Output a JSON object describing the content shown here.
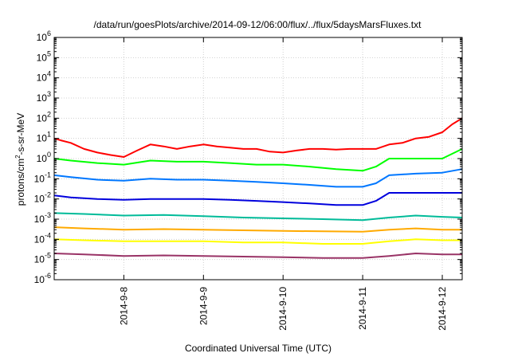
{
  "chart_data": {
    "type": "line",
    "title": "/data/run/goesPlots/archive/2014-09-12/06:00/flux/../flux/5daysMarsFluxes.txt",
    "xlabel": "Coordinated Universal Time (UTC)",
    "ylabel": "protons/cm²-s-sr-MeV",
    "ylabel_parts": {
      "before": "protons/cm",
      "sup": "2",
      "after": "-s-sr-MeV"
    },
    "y_scale": "log",
    "ylim": [
      1e-06,
      1000000.0
    ],
    "y_ticks": [
      {
        "value": 1e-06,
        "base": "10",
        "exp": "-6"
      },
      {
        "value": 1e-05,
        "base": "10",
        "exp": "-5"
      },
      {
        "value": 0.0001,
        "base": "10",
        "exp": "-4"
      },
      {
        "value": 0.001,
        "base": "10",
        "exp": "-3"
      },
      {
        "value": 0.01,
        "base": "10",
        "exp": "-2"
      },
      {
        "value": 0.1,
        "base": "10",
        "exp": "-1"
      },
      {
        "value": 1,
        "base": "10",
        "exp": "0"
      },
      {
        "value": 10,
        "base": "10",
        "exp": "1"
      },
      {
        "value": 100,
        "base": "10",
        "exp": "2"
      },
      {
        "value": 1000,
        "base": "10",
        "exp": "3"
      },
      {
        "value": 10000,
        "base": "10",
        "exp": "4"
      },
      {
        "value": 100000,
        "base": "10",
        "exp": "5"
      },
      {
        "value": 1000000,
        "base": "10",
        "exp": "6"
      }
    ],
    "xlim": [
      "2014-09-07 03:00",
      "2014-09-12 06:00"
    ],
    "x_ticks": [
      {
        "value": "2014-09-08 00:00",
        "label": "2014-9-8"
      },
      {
        "value": "2014-09-09 00:00",
        "label": "2014-9-9"
      },
      {
        "value": "2014-09-10 00:00",
        "label": "2014-9-10"
      },
      {
        "value": "2014-09-11 00:00",
        "label": "2014-9-11"
      },
      {
        "value": "2014-09-12 00:00",
        "label": "2014-9-12"
      }
    ],
    "grid": true,
    "legend": "none",
    "series": [
      {
        "color": "#ff0000",
        "x": [
          "2014-09-07 03:00",
          "2014-09-07 05:00",
          "2014-09-07 08:00",
          "2014-09-07 12:00",
          "2014-09-07 16:00",
          "2014-09-07 20:00",
          "2014-09-08 00:00",
          "2014-09-08 04:00",
          "2014-09-08 08:00",
          "2014-09-08 12:00",
          "2014-09-08 16:00",
          "2014-09-08 20:00",
          "2014-09-09 00:00",
          "2014-09-09 04:00",
          "2014-09-09 08:00",
          "2014-09-09 12:00",
          "2014-09-09 16:00",
          "2014-09-09 20:00",
          "2014-09-10 00:00",
          "2014-09-10 04:00",
          "2014-09-10 08:00",
          "2014-09-10 12:00",
          "2014-09-10 16:00",
          "2014-09-10 20:00",
          "2014-09-11 00:00",
          "2014-09-11 04:00",
          "2014-09-11 08:00",
          "2014-09-11 12:00",
          "2014-09-11 16:00",
          "2014-09-11 20:00",
          "2014-09-12 00:00",
          "2014-09-12 03:00",
          "2014-09-12 06:00"
        ],
        "values": [
          10,
          8,
          6,
          3,
          2,
          1.5,
          1.2,
          2.5,
          5,
          4,
          3,
          4,
          5,
          4,
          3.5,
          3,
          3,
          2.2,
          2,
          2.5,
          3,
          3,
          2.8,
          3,
          3,
          3,
          5,
          6,
          10,
          12,
          20,
          50,
          100
        ]
      },
      {
        "color": "#00ff00",
        "x": [
          "2014-09-07 03:00",
          "2014-09-07 08:00",
          "2014-09-07 16:00",
          "2014-09-08 00:00",
          "2014-09-08 08:00",
          "2014-09-08 16:00",
          "2014-09-09 00:00",
          "2014-09-09 08:00",
          "2014-09-09 16:00",
          "2014-09-10 00:00",
          "2014-09-10 08:00",
          "2014-09-10 16:00",
          "2014-09-11 00:00",
          "2014-09-11 04:00",
          "2014-09-11 08:00",
          "2014-09-11 16:00",
          "2014-09-12 00:00",
          "2014-09-12 06:00"
        ],
        "values": [
          1,
          0.8,
          0.6,
          0.5,
          0.8,
          0.7,
          0.7,
          0.6,
          0.5,
          0.5,
          0.4,
          0.3,
          0.25,
          0.4,
          1,
          1,
          1,
          3
        ]
      },
      {
        "color": "#0077ff",
        "x": [
          "2014-09-07 03:00",
          "2014-09-07 08:00",
          "2014-09-07 16:00",
          "2014-09-08 00:00",
          "2014-09-08 08:00",
          "2014-09-08 16:00",
          "2014-09-09 00:00",
          "2014-09-09 08:00",
          "2014-09-09 16:00",
          "2014-09-10 00:00",
          "2014-09-10 08:00",
          "2014-09-10 16:00",
          "2014-09-11 00:00",
          "2014-09-11 04:00",
          "2014-09-11 08:00",
          "2014-09-11 16:00",
          "2014-09-12 00:00",
          "2014-09-12 06:00"
        ],
        "values": [
          0.15,
          0.12,
          0.09,
          0.08,
          0.1,
          0.09,
          0.09,
          0.08,
          0.07,
          0.06,
          0.05,
          0.04,
          0.04,
          0.06,
          0.15,
          0.18,
          0.2,
          0.3
        ]
      },
      {
        "color": "#0000dd",
        "x": [
          "2014-09-07 03:00",
          "2014-09-07 08:00",
          "2014-09-07 16:00",
          "2014-09-08 00:00",
          "2014-09-08 08:00",
          "2014-09-08 16:00",
          "2014-09-09 00:00",
          "2014-09-09 08:00",
          "2014-09-09 16:00",
          "2014-09-10 00:00",
          "2014-09-10 08:00",
          "2014-09-10 16:00",
          "2014-09-11 00:00",
          "2014-09-11 04:00",
          "2014-09-11 08:00",
          "2014-09-11 16:00",
          "2014-09-12 00:00",
          "2014-09-12 06:00"
        ],
        "values": [
          0.015,
          0.012,
          0.01,
          0.009,
          0.01,
          0.01,
          0.01,
          0.009,
          0.008,
          0.007,
          0.006,
          0.005,
          0.005,
          0.008,
          0.02,
          0.02,
          0.02,
          0.02
        ]
      },
      {
        "color": "#00bb99",
        "x": [
          "2014-09-07 03:00",
          "2014-09-07 12:00",
          "2014-09-08 00:00",
          "2014-09-08 12:00",
          "2014-09-09 00:00",
          "2014-09-09 12:00",
          "2014-09-10 00:00",
          "2014-09-10 12:00",
          "2014-09-11 00:00",
          "2014-09-11 08:00",
          "2014-09-11 16:00",
          "2014-09-12 00:00",
          "2014-09-12 06:00"
        ],
        "values": [
          0.002,
          0.0018,
          0.0015,
          0.0016,
          0.0014,
          0.0012,
          0.0011,
          0.001,
          0.0009,
          0.0012,
          0.0015,
          0.0013,
          0.0012
        ]
      },
      {
        "color": "#ffaa00",
        "x": [
          "2014-09-07 03:00",
          "2014-09-07 12:00",
          "2014-09-08 00:00",
          "2014-09-08 12:00",
          "2014-09-09 00:00",
          "2014-09-09 12:00",
          "2014-09-10 00:00",
          "2014-09-10 12:00",
          "2014-09-11 00:00",
          "2014-09-11 08:00",
          "2014-09-11 16:00",
          "2014-09-12 00:00",
          "2014-09-12 06:00"
        ],
        "values": [
          0.0004,
          0.00035,
          0.0003,
          0.00032,
          0.0003,
          0.00028,
          0.00026,
          0.00025,
          0.00024,
          0.0003,
          0.00035,
          0.0003,
          0.0003
        ]
      },
      {
        "color": "#ffff00",
        "x": [
          "2014-09-07 03:00",
          "2014-09-07 12:00",
          "2014-09-08 00:00",
          "2014-09-08 12:00",
          "2014-09-09 00:00",
          "2014-09-09 12:00",
          "2014-09-10 00:00",
          "2014-09-10 12:00",
          "2014-09-11 00:00",
          "2014-09-11 08:00",
          "2014-09-11 16:00",
          "2014-09-12 00:00",
          "2014-09-12 06:00"
        ],
        "values": [
          0.0001,
          9e-05,
          8e-05,
          8e-05,
          8e-05,
          7e-05,
          7e-05,
          6e-05,
          6e-05,
          8e-05,
          0.0001,
          9e-05,
          9e-05
        ]
      },
      {
        "color": "#993366",
        "x": [
          "2014-09-07 03:00",
          "2014-09-07 12:00",
          "2014-09-08 00:00",
          "2014-09-08 12:00",
          "2014-09-09 00:00",
          "2014-09-09 12:00",
          "2014-09-10 00:00",
          "2014-09-10 12:00",
          "2014-09-11 00:00",
          "2014-09-11 08:00",
          "2014-09-11 16:00",
          "2014-09-12 00:00",
          "2014-09-12 06:00"
        ],
        "values": [
          2e-05,
          1.8e-05,
          1.5e-05,
          1.6e-05,
          1.5e-05,
          1.4e-05,
          1.3e-05,
          1.2e-05,
          1.2e-05,
          1.5e-05,
          2e-05,
          1.8e-05,
          1.8e-05
        ]
      }
    ]
  }
}
